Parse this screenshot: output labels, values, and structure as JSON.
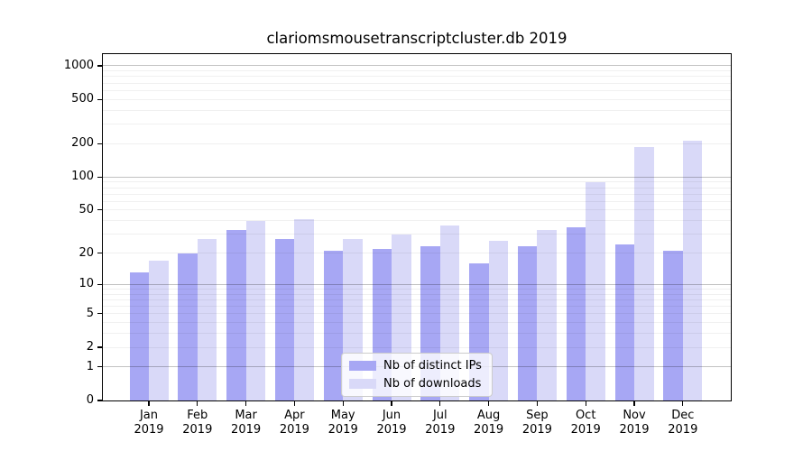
{
  "title": "clariomsmousetranscriptcluster.db 2019",
  "colors": {
    "ips": "#a7a7f4",
    "downloads": "#d9d9f8",
    "grid_major": "#c2c2c2",
    "grid_minor": "#f0f0f0",
    "spine": "#000000"
  },
  "chart_data": {
    "type": "bar",
    "title": "clariomsmousetranscriptcluster.db 2019",
    "categories": [
      "Jan",
      "Feb",
      "Mar",
      "Apr",
      "May",
      "Jun",
      "Jul",
      "Aug",
      "Sep",
      "Oct",
      "Nov",
      "Dec"
    ],
    "year": "2019",
    "series": [
      {
        "name": "Nb of distinct IPs",
        "key": "ips",
        "values": [
          13,
          20,
          33,
          27,
          21,
          22,
          23,
          16,
          23,
          35,
          24,
          21
        ]
      },
      {
        "name": "Nb of downloads",
        "key": "downloads",
        "values": [
          17,
          27,
          40,
          41,
          27,
          30,
          36,
          26,
          33,
          90,
          185,
          212
        ]
      }
    ],
    "yscale": "log1p",
    "yticks": [
      0,
      1,
      2,
      5,
      10,
      20,
      50,
      100,
      200,
      500,
      1000
    ],
    "ylim": [
      0,
      1270
    ],
    "xlabel": "",
    "ylabel": "",
    "grid": "major+minor",
    "legend_position": "lower-center"
  }
}
